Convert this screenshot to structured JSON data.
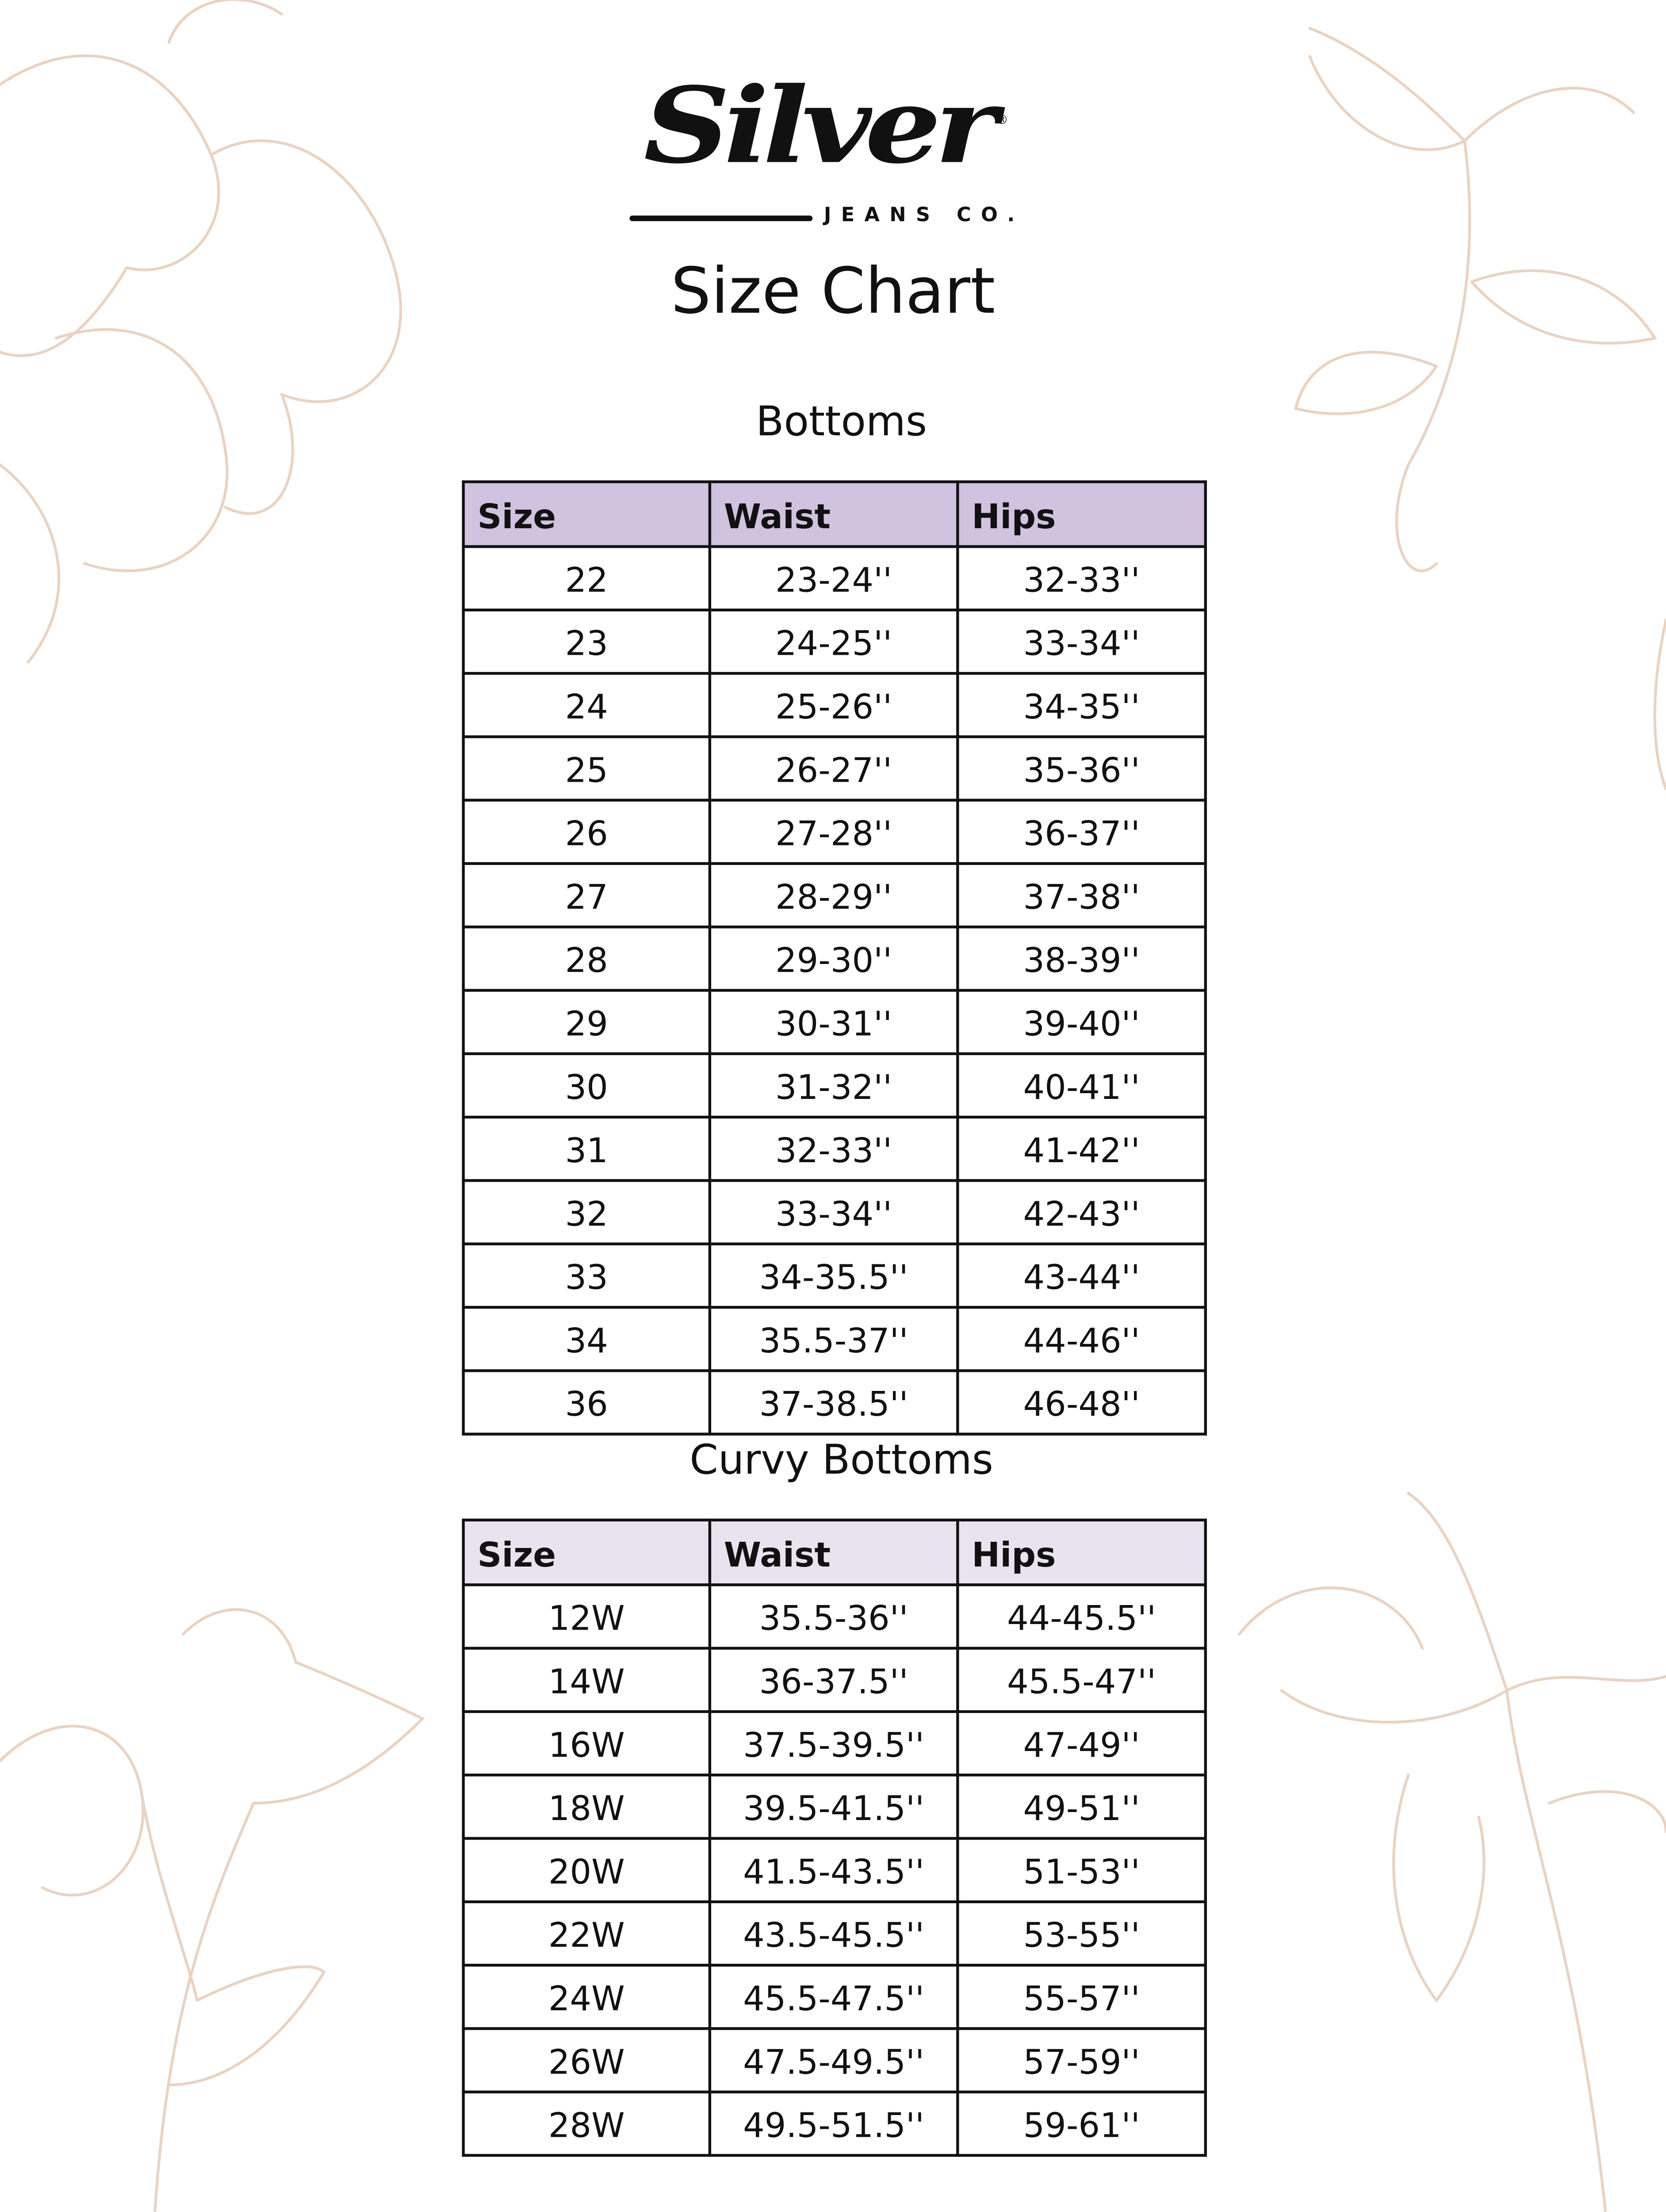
{
  "brand": {
    "logo_text": "Silver",
    "logo_subtext": "JEANS CO.",
    "registered_mark": "®"
  },
  "title": "Size Chart",
  "colors": {
    "bottoms_header": "#d1c2df",
    "curvy_header": "#e9e3f0",
    "floral_lines": "#ead3c3",
    "border": "#111111"
  },
  "bottoms": {
    "heading": "Bottoms",
    "columns": [
      "Size",
      "Waist",
      "Hips"
    ],
    "rows": [
      [
        "22",
        "23-24''",
        "32-33''"
      ],
      [
        "23",
        "24-25''",
        "33-34''"
      ],
      [
        "24",
        "25-26''",
        "34-35''"
      ],
      [
        "25",
        "26-27''",
        "35-36''"
      ],
      [
        "26",
        "27-28''",
        "36-37''"
      ],
      [
        "27",
        "28-29''",
        "37-38''"
      ],
      [
        "28",
        "29-30''",
        "38-39''"
      ],
      [
        "29",
        "30-31''",
        "39-40''"
      ],
      [
        "30",
        "31-32''",
        "40-41''"
      ],
      [
        "31",
        "32-33''",
        "41-42''"
      ],
      [
        "32",
        "33-34''",
        "42-43''"
      ],
      [
        "33",
        "34-35.5''",
        "43-44''"
      ],
      [
        "34",
        "35.5-37''",
        "44-46''"
      ],
      [
        "36",
        "37-38.5''",
        "46-48''"
      ]
    ]
  },
  "curvy": {
    "heading": "Curvy Bottoms",
    "columns": [
      "Size",
      "Waist",
      "Hips"
    ],
    "rows": [
      [
        "12W",
        "35.5-36''",
        "44-45.5''"
      ],
      [
        "14W",
        "36-37.5''",
        "45.5-47''"
      ],
      [
        "16W",
        "37.5-39.5''",
        "47-49''"
      ],
      [
        "18W",
        "39.5-41.5''",
        "49-51''"
      ],
      [
        "20W",
        "41.5-43.5''",
        "51-53''"
      ],
      [
        "22W",
        "43.5-45.5''",
        "53-55''"
      ],
      [
        "24W",
        "45.5-47.5''",
        "55-57''"
      ],
      [
        "26W",
        "47.5-49.5''",
        "57-59''"
      ],
      [
        "28W",
        "49.5-51.5''",
        "59-61''"
      ]
    ]
  }
}
